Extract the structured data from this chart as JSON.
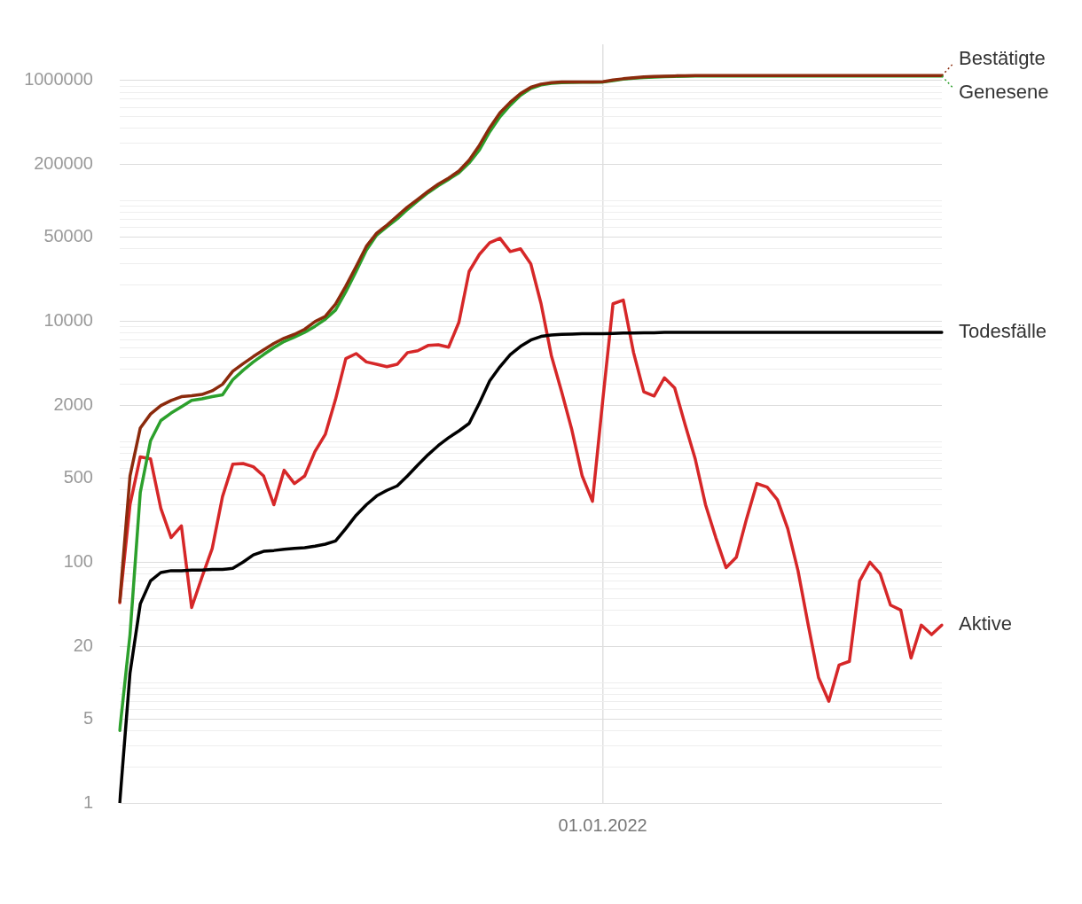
{
  "chart_data": {
    "type": "line",
    "grid": true,
    "legend": "right",
    "categories": [
      null,
      null,
      null,
      null,
      null,
      null,
      null,
      null,
      null,
      null,
      null,
      null,
      null,
      null,
      null,
      null,
      null,
      null,
      null,
      null,
      null,
      null,
      null,
      null,
      null,
      null,
      null,
      null,
      null,
      null,
      null,
      null,
      null,
      null,
      null,
      null,
      null,
      null,
      null,
      null,
      null,
      null,
      null,
      null,
      null,
      null,
      null,
      "01.01.2022",
      null,
      null,
      null,
      null,
      null,
      null,
      null,
      null,
      null,
      null,
      null,
      null,
      null,
      null,
      null,
      null,
      null,
      null,
      null,
      null,
      null,
      null,
      null,
      null,
      null,
      null,
      null,
      null,
      null,
      null,
      null,
      null,
      null
    ],
    "log": "y",
    "ylim": [
      1,
      2000000
    ],
    "yticks": [
      1,
      {
        "value": 2,
        "label": null
      },
      {
        "value": 3,
        "label": null
      },
      {
        "value": 4,
        "label": null
      },
      5,
      {
        "value": 6,
        "label": null
      },
      {
        "value": 7,
        "label": null
      },
      {
        "value": 8,
        "label": null
      },
      {
        "value": 9,
        "label": null
      },
      {
        "value": 10,
        "label": null
      },
      20,
      {
        "value": 30,
        "label": null
      },
      {
        "value": 40,
        "label": null
      },
      {
        "value": 50,
        "label": null
      },
      {
        "value": 60,
        "label": null
      },
      {
        "value": 70,
        "label": null
      },
      {
        "value": 80,
        "label": null
      },
      {
        "value": 90,
        "label": null
      },
      100,
      {
        "value": 200,
        "label": null
      },
      {
        "value": 300,
        "label": null
      },
      {
        "value": 400,
        "label": null
      },
      500,
      {
        "value": 600,
        "label": null
      },
      {
        "value": 700,
        "label": null
      },
      {
        "value": 800,
        "label": null
      },
      {
        "value": 900,
        "label": null
      },
      {
        "value": 1000,
        "label": null
      },
      2000,
      {
        "value": 3000,
        "label": null
      },
      {
        "value": 4000,
        "label": null
      },
      {
        "value": 5000,
        "label": null
      },
      {
        "value": 6000,
        "label": null
      },
      {
        "value": 7000,
        "label": null
      },
      {
        "value": 8000,
        "label": null
      },
      {
        "value": 9000,
        "label": null
      },
      10000,
      {
        "value": 20000,
        "label": null
      },
      {
        "value": 30000,
        "label": null
      },
      {
        "value": 40000,
        "label": null
      },
      50000,
      {
        "value": 60000,
        "label": null
      },
      {
        "value": 70000,
        "label": null
      },
      {
        "value": 80000,
        "label": null
      },
      {
        "value": 90000,
        "label": null
      },
      {
        "value": 100000,
        "label": null
      },
      200000,
      {
        "value": 300000,
        "label": null
      },
      {
        "value": 400000,
        "label": null
      },
      {
        "value": 500000,
        "label": null
      },
      {
        "value": 600000,
        "label": null
      },
      {
        "value": 700000,
        "label": null
      },
      {
        "value": 800000,
        "label": null
      },
      {
        "value": 900000,
        "label": null
      },
      1000000
    ],
    "series": [
      {
        "name": "Bestätigte",
        "color": "#8b2a0c",
        "values": [
          47,
          520,
          1300,
          1700,
          2000,
          2200,
          2370,
          2410,
          2470,
          2650,
          3000,
          3850,
          4450,
          5100,
          5800,
          6550,
          7250,
          7800,
          8600,
          9950,
          11000,
          13900,
          19600,
          28500,
          42000,
          54000,
          63000,
          75000,
          89000,
          103000,
          120000,
          138000,
          155000,
          177000,
          218000,
          290000,
          405000,
          540000,
          660000,
          780000,
          880000,
          935000,
          960000,
          972000,
          975000,
          975000,
          975000,
          976000,
          1010000,
          1035000,
          1055000,
          1072000,
          1080000,
          1088000,
          1093000,
          1098000,
          1100000,
          1100000,
          1100000,
          1100000,
          1100000,
          1100000,
          1100000,
          1100000,
          1100000,
          1100000,
          1100000,
          1100000,
          1100000,
          1100000,
          1100000,
          1100000,
          1100000,
          1100000,
          1100000,
          1100000,
          1100000,
          1100000,
          1100000,
          1100000,
          1100000
        ]
      },
      {
        "name": "Genesene",
        "color": "#2ca02c",
        "values": [
          4,
          25,
          380,
          1020,
          1500,
          1730,
          1950,
          2210,
          2270,
          2370,
          2450,
          3270,
          3920,
          4600,
          5300,
          6050,
          6800,
          7400,
          8100,
          9100,
          10400,
          12400,
          17600,
          26000,
          39000,
          52000,
          61000,
          71000,
          85000,
          100000,
          117000,
          134000,
          151000,
          171000,
          207000,
          265000,
          375000,
          500000,
          625000,
          755000,
          860000,
          920000,
          950000,
          962000,
          966000,
          969000,
          970000,
          971000,
          1000000,
          1026000,
          1045000,
          1058000,
          1068000,
          1077000,
          1083000,
          1088000,
          1090000,
          1090000,
          1090000,
          1090000,
          1090000,
          1090000,
          1090000,
          1090000,
          1090000,
          1090000,
          1090000,
          1090000,
          1090000,
          1090000,
          1090000,
          1090000,
          1090000,
          1090000,
          1090000,
          1090000,
          1090000,
          1090000,
          1090000,
          1090000,
          1090000
        ]
      },
      {
        "name": "Todesfälle",
        "color": "#000000",
        "values": [
          1,
          12,
          45,
          70,
          82,
          85,
          85,
          86,
          86,
          87,
          87,
          89,
          100,
          115,
          123,
          125,
          128,
          130,
          132,
          136,
          141,
          150,
          190,
          245,
          300,
          355,
          395,
          430,
          520,
          640,
          780,
          930,
          1080,
          1230,
          1420,
          2100,
          3200,
          4200,
          5300,
          6200,
          7000,
          7500,
          7700,
          7800,
          7850,
          7900,
          7900,
          7900,
          7950,
          8000,
          8000,
          8050,
          8050,
          8100,
          8100,
          8100,
          8100,
          8100,
          8100,
          8100,
          8100,
          8100,
          8100,
          8100,
          8100,
          8100,
          8100,
          8100,
          8100,
          8100,
          8100,
          8100,
          8100,
          8100,
          8100,
          8100,
          8100,
          8100,
          8100,
          8100,
          8100
        ]
      },
      {
        "name": "Aktive",
        "color": "#d62728",
        "values": [
          46,
          300,
          750,
          720,
          280,
          160,
          200,
          42,
          75,
          130,
          350,
          650,
          660,
          620,
          520,
          300,
          580,
          450,
          520,
          830,
          1150,
          2250,
          4900,
          5400,
          4600,
          4400,
          4200,
          4400,
          5500,
          5700,
          6300,
          6400,
          6100,
          9800,
          26000,
          36000,
          45000,
          49000,
          38000,
          40000,
          30000,
          14000,
          5200,
          2600,
          1250,
          520,
          320,
          2200,
          14000,
          15000,
          5500,
          2600,
          2400,
          3400,
          2800,
          1400,
          720,
          300,
          160,
          90,
          110,
          230,
          450,
          420,
          330,
          190,
          85,
          30,
          11,
          7,
          14,
          15,
          70,
          100,
          80,
          44,
          40,
          16,
          30,
          25,
          30
        ]
      }
    ]
  }
}
